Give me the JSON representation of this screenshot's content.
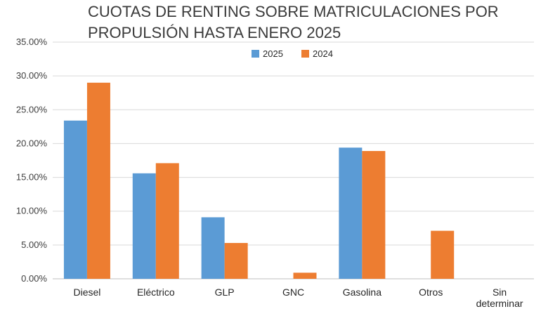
{
  "chart_data": {
    "type": "bar",
    "title_lines": [
      "CUOTAS DE RENTING SOBRE MATRICULACIONES POR",
      "PROPULSIÓN HASTA ENERO 2025"
    ],
    "categories": [
      "Diesel",
      "Eléctrico",
      "GLP",
      "GNC",
      "Gasolina",
      "Otros",
      "Sin determinar"
    ],
    "series": [
      {
        "name": "2025",
        "color": "#5b9bd5",
        "values": [
          23.4,
          15.6,
          9.1,
          0.0,
          19.4,
          0.0,
          0.0
        ]
      },
      {
        "name": "2024",
        "color": "#ed7d31",
        "values": [
          29.0,
          17.1,
          5.3,
          0.9,
          18.9,
          7.1,
          0.0
        ]
      }
    ],
    "ylim": [
      0,
      35
    ],
    "yticks": [
      "0.00%",
      "5.00%",
      "10.00%",
      "15.00%",
      "20.00%",
      "25.00%",
      "30.00%",
      "35.00%"
    ],
    "ytick_values": [
      0,
      5,
      10,
      15,
      20,
      25,
      30,
      35
    ],
    "grid": true,
    "legend_position": "top-center",
    "xlabel": "",
    "ylabel": ""
  }
}
